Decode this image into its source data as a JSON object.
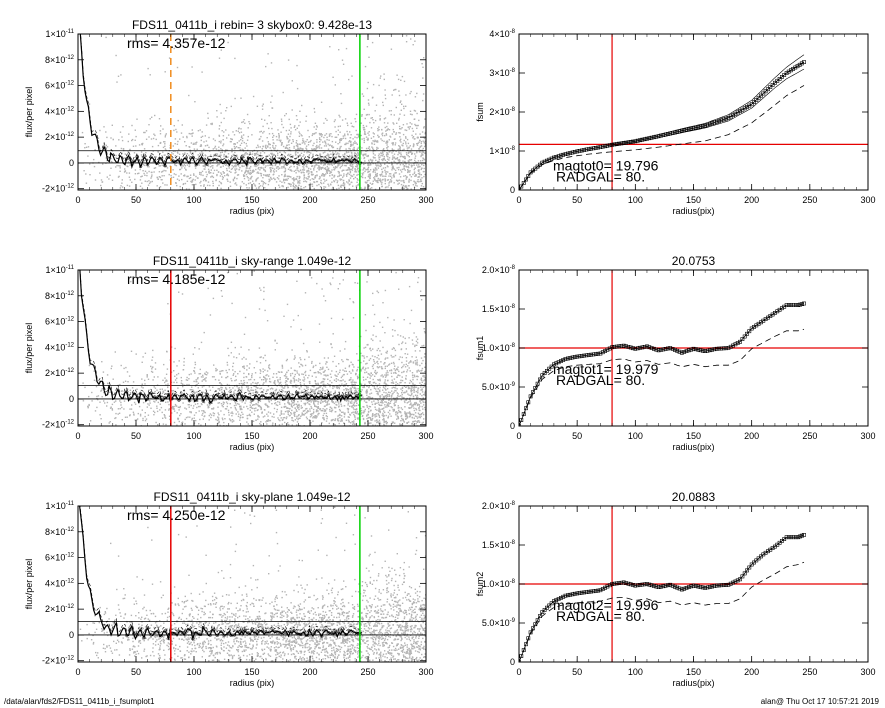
{
  "footer": {
    "left": "/data/alan/fds2/FDS11_0411b_i_fsumplot1",
    "right": "alan@  Thu Oct 17 10:57:21 2019"
  },
  "colors": {
    "scatter": "#b4b4b4",
    "profile": "#000000",
    "orange_marker": "#f08c1e",
    "red_marker": "#e60000",
    "green_marker": "#00d200"
  },
  "chart_data": [
    {
      "id": "left-1",
      "type": "scatter",
      "title": "FDS11_0411b_i rebin= 3    skybox0:  9.428e-13",
      "xlabel": "radius (pix)",
      "ylabel": "flux/per pixel",
      "xlim": [
        0,
        300
      ],
      "ylim": [
        -2.1e-12,
        1e-11
      ],
      "xticks": [
        "0",
        "50",
        "100",
        "150",
        "200",
        "250",
        "300"
      ],
      "yticks": [
        {
          "value": -2e-12,
          "mant": "-2×10",
          "exp": "-12"
        },
        {
          "value": 0,
          "mant": "0",
          "exp": ""
        },
        {
          "value": 2e-12,
          "mant": "2×10",
          "exp": "-12"
        },
        {
          "value": 4e-12,
          "mant": "4×10",
          "exp": "-12"
        },
        {
          "value": 6e-12,
          "mant": "6×10",
          "exp": "-12"
        },
        {
          "value": 8e-12,
          "mant": "8×10",
          "exp": "-12"
        },
        {
          "value": 1e-11,
          "mant": "1×10",
          "exp": "-11"
        }
      ],
      "annotation": "rms= 4.357e-12",
      "hlines": [
        0,
        9.428e-13
      ],
      "vlines": [
        {
          "x": 80,
          "color": "#f08c1e",
          "dashed": true
        },
        {
          "x": 243,
          "color": "#00d200",
          "dashed": false
        }
      ],
      "sky": 9.428e-13
    },
    {
      "id": "right-1",
      "type": "line",
      "title": "",
      "xlabel": "radius(pix)",
      "ylabel": "fsum",
      "xlim": [
        0,
        300
      ],
      "ylim": [
        0,
        4e-08
      ],
      "xticks": [
        "0",
        "50",
        "100",
        "150",
        "200",
        "250",
        "300"
      ],
      "yticks": [
        {
          "value": 0,
          "mant": "0",
          "exp": ""
        },
        {
          "value": 1e-08,
          "mant": "1×10",
          "exp": "-8"
        },
        {
          "value": 2e-08,
          "mant": "2×10",
          "exp": "-8"
        },
        {
          "value": 3e-08,
          "mant": "3×10",
          "exp": "-8"
        },
        {
          "value": 4e-08,
          "mant": "4×10",
          "exp": "-8"
        }
      ],
      "annotations": [
        "magtot0=  19.796",
        "RADGAL=     80."
      ],
      "hline": 1.17e-08,
      "vline": 80,
      "series": [
        {
          "style": "symbols",
          "x": [
            0,
            10,
            20,
            30,
            40,
            50,
            60,
            70,
            80,
            100,
            120,
            140,
            160,
            180,
            200,
            220,
            230,
            245
          ],
          "y": [
            0,
            4.5e-09,
            7e-09,
            8.3e-09,
            9.2e-09,
            9.9e-09,
            1.05e-08,
            1.1e-08,
            1.16e-08,
            1.25e-08,
            1.38e-08,
            1.52e-08,
            1.65e-08,
            1.85e-08,
            2.2e-08,
            2.75e-08,
            3e-08,
            3.28e-08
          ]
        },
        {
          "style": "dashed",
          "x": [
            0,
            10,
            20,
            30,
            40,
            50,
            60,
            70,
            80,
            100,
            120,
            140,
            160,
            180,
            200,
            220,
            230,
            245
          ],
          "y": [
            0,
            4.3e-09,
            6.5e-09,
            7.6e-09,
            8.3e-09,
            8.8e-09,
            9.2e-09,
            9.5e-09,
            9.8e-09,
            1.03e-08,
            1.1e-08,
            1.18e-08,
            1.26e-08,
            1.42e-08,
            1.72e-08,
            2.18e-08,
            2.42e-08,
            2.68e-08
          ]
        },
        {
          "style": "thin",
          "x": [
            80,
            100,
            120,
            140,
            160,
            180,
            200,
            220,
            230,
            245
          ],
          "y": [
            1.19e-08,
            1.28e-08,
            1.42e-08,
            1.57e-08,
            1.71e-08,
            1.93e-08,
            2.3e-08,
            2.88e-08,
            3.15e-08,
            3.47e-08
          ]
        },
        {
          "style": "thin",
          "x": [
            80,
            100,
            120,
            140,
            160,
            180,
            200,
            220,
            230,
            245
          ],
          "y": [
            1.13e-08,
            1.22e-08,
            1.34e-08,
            1.47e-08,
            1.59e-08,
            1.77e-08,
            2.1e-08,
            2.62e-08,
            2.85e-08,
            3.1e-08
          ]
        }
      ]
    },
    {
      "id": "left-2",
      "type": "scatter",
      "title": "FDS11_0411b_i sky-range  1.049e-12",
      "xlabel": "radius (pix)",
      "ylabel": "flux/per pixel",
      "xlim": [
        0,
        300
      ],
      "ylim": [
        -2.1e-12,
        1e-11
      ],
      "xticks": [
        "0",
        "50",
        "100",
        "150",
        "200",
        "250",
        "300"
      ],
      "yticks": [
        {
          "value": -2e-12,
          "mant": "-2×10",
          "exp": "-12"
        },
        {
          "value": 0,
          "mant": "0",
          "exp": ""
        },
        {
          "value": 2e-12,
          "mant": "2×10",
          "exp": "-12"
        },
        {
          "value": 4e-12,
          "mant": "4×10",
          "exp": "-12"
        },
        {
          "value": 6e-12,
          "mant": "6×10",
          "exp": "-12"
        },
        {
          "value": 8e-12,
          "mant": "8×10",
          "exp": "-12"
        },
        {
          "value": 1e-11,
          "mant": "1×10",
          "exp": "-11"
        }
      ],
      "annotation": "rms= 4.185e-12",
      "hlines": [
        0,
        1.049e-12
      ],
      "vlines": [
        {
          "x": 80,
          "color": "#e60000",
          "dashed": false
        },
        {
          "x": 243,
          "color": "#00d200",
          "dashed": false
        }
      ],
      "sky": 1.049e-12
    },
    {
      "id": "right-2",
      "type": "line",
      "title": "20.0753",
      "xlabel": "radius(pix)",
      "ylabel": "fsum1",
      "xlim": [
        0,
        300
      ],
      "ylim": [
        0,
        2e-08
      ],
      "xticks": [
        "0",
        "50",
        "100",
        "150",
        "200",
        "250",
        "300"
      ],
      "yticks": [
        {
          "value": 0,
          "mant": "0",
          "exp": ""
        },
        {
          "value": 5e-09,
          "mant": "5.0×10",
          "exp": "-9"
        },
        {
          "value": 1e-08,
          "mant": "1.0×10",
          "exp": "-8"
        },
        {
          "value": 1.5e-08,
          "mant": "1.5×10",
          "exp": "-8"
        },
        {
          "value": 2e-08,
          "mant": "2.0×10",
          "exp": "-8"
        }
      ],
      "annotations": [
        "magtot1=  19.979",
        "RADGAL=     80."
      ],
      "hline": 1e-08,
      "vline": 80,
      "series": [
        {
          "style": "symbols",
          "x": [
            0,
            10,
            20,
            30,
            40,
            50,
            60,
            70,
            80,
            90,
            100,
            110,
            120,
            130,
            140,
            150,
            160,
            170,
            180,
            190,
            200,
            210,
            220,
            230,
            240,
            245
          ],
          "y": [
            0,
            3.8e-09,
            6.5e-09,
            7.9e-09,
            8.6e-09,
            8.9e-09,
            9.1e-09,
            9.3e-09,
            1.01e-08,
            1.03e-08,
            9.9e-09,
            1.02e-08,
            9.7e-09,
            1e-08,
            9.4e-09,
            9.9e-09,
            9.6e-09,
            9.9e-09,
            1e-08,
            1.08e-08,
            1.25e-08,
            1.35e-08,
            1.45e-08,
            1.55e-08,
            1.55e-08,
            1.57e-08
          ]
        },
        {
          "style": "dashed",
          "x": [
            0,
            10,
            20,
            30,
            40,
            50,
            60,
            70,
            80,
            90,
            100,
            110,
            120,
            130,
            140,
            150,
            160,
            170,
            180,
            190,
            200,
            210,
            220,
            230,
            240,
            245
          ],
          "y": [
            0,
            3.6e-09,
            6e-09,
            7.1e-09,
            7.6e-09,
            7.8e-09,
            7.9e-09,
            8e-09,
            8.5e-09,
            8.6e-09,
            8.2e-09,
            8.4e-09,
            7.9e-09,
            8.1e-09,
            7.6e-09,
            7.9e-09,
            7.6e-09,
            7.8e-09,
            7.8e-09,
            8.4e-09,
            9.9e-09,
            1.07e-08,
            1.15e-08,
            1.22e-08,
            1.22e-08,
            1.24e-08
          ]
        }
      ]
    },
    {
      "id": "left-3",
      "type": "scatter",
      "title": "FDS11_0411b_i sky-plane  1.049e-12",
      "xlabel": "radius (pix)",
      "ylabel": "flux/per pixel",
      "xlim": [
        0,
        300
      ],
      "ylim": [
        -2.1e-12,
        1e-11
      ],
      "xticks": [
        "0",
        "50",
        "100",
        "150",
        "200",
        "250",
        "300"
      ],
      "yticks": [
        {
          "value": -2e-12,
          "mant": "-2×10",
          "exp": "-12"
        },
        {
          "value": 0,
          "mant": "0",
          "exp": ""
        },
        {
          "value": 2e-12,
          "mant": "2×10",
          "exp": "-12"
        },
        {
          "value": 4e-12,
          "mant": "4×10",
          "exp": "-12"
        },
        {
          "value": 6e-12,
          "mant": "6×10",
          "exp": "-12"
        },
        {
          "value": 8e-12,
          "mant": "8×10",
          "exp": "-12"
        },
        {
          "value": 1e-11,
          "mant": "1×10",
          "exp": "-11"
        }
      ],
      "annotation": "rms= 4.250e-12",
      "hlines": [
        0,
        1.049e-12
      ],
      "vlines": [
        {
          "x": 80,
          "color": "#e60000",
          "dashed": false
        },
        {
          "x": 243,
          "color": "#00d200",
          "dashed": false
        }
      ],
      "sky": 1.049e-12
    },
    {
      "id": "right-3",
      "type": "line",
      "title": "20.0883",
      "xlabel": "radius(pix)",
      "ylabel": "fsum2",
      "xlim": [
        0,
        300
      ],
      "ylim": [
        0,
        2e-08
      ],
      "xticks": [
        "0",
        "50",
        "100",
        "150",
        "200",
        "250",
        "300"
      ],
      "yticks": [
        {
          "value": 0,
          "mant": "0",
          "exp": ""
        },
        {
          "value": 5e-09,
          "mant": "5.0×10",
          "exp": "-9"
        },
        {
          "value": 1e-08,
          "mant": "1.0×10",
          "exp": "-8"
        },
        {
          "value": 1.5e-08,
          "mant": "1.5×10",
          "exp": "-8"
        },
        {
          "value": 2e-08,
          "mant": "2.0×10",
          "exp": "-8"
        }
      ],
      "annotations": [
        "magtot2=  19.996",
        "RADGAL=     80."
      ],
      "hline": 1e-08,
      "vline": 80,
      "series": [
        {
          "style": "symbols",
          "x": [
            0,
            10,
            20,
            30,
            40,
            50,
            60,
            70,
            80,
            90,
            100,
            110,
            120,
            130,
            140,
            150,
            160,
            170,
            180,
            190,
            200,
            210,
            220,
            230,
            240,
            245
          ],
          "y": [
            0,
            3.8e-09,
            6.4e-09,
            7.8e-09,
            8.5e-09,
            8.8e-09,
            9e-09,
            9.2e-09,
            1e-08,
            1.02e-08,
            9.8e-09,
            1e-08,
            9.6e-09,
            9.9e-09,
            9.3e-09,
            9.8e-09,
            9.5e-09,
            9.8e-09,
            9.9e-09,
            1.06e-08,
            1.25e-08,
            1.38e-08,
            1.48e-08,
            1.6e-08,
            1.6e-08,
            1.63e-08
          ]
        },
        {
          "style": "dashed",
          "x": [
            0,
            10,
            20,
            30,
            40,
            50,
            60,
            70,
            80,
            90,
            100,
            110,
            120,
            130,
            140,
            150,
            160,
            170,
            180,
            190,
            200,
            210,
            220,
            230,
            240,
            245
          ],
          "y": [
            0,
            3.6e-09,
            5.9e-09,
            7e-09,
            7.4e-09,
            7.6e-09,
            7.7e-09,
            7.8e-09,
            8.2e-09,
            8.3e-09,
            7.9e-09,
            8.1e-09,
            7.6e-09,
            7.8e-09,
            7.3e-09,
            7.6e-09,
            7.3e-09,
            7.5e-09,
            7.5e-09,
            8.1e-09,
            9.6e-09,
            1.05e-08,
            1.13e-08,
            1.22e-08,
            1.25e-08,
            1.28e-08
          ]
        }
      ]
    }
  ]
}
